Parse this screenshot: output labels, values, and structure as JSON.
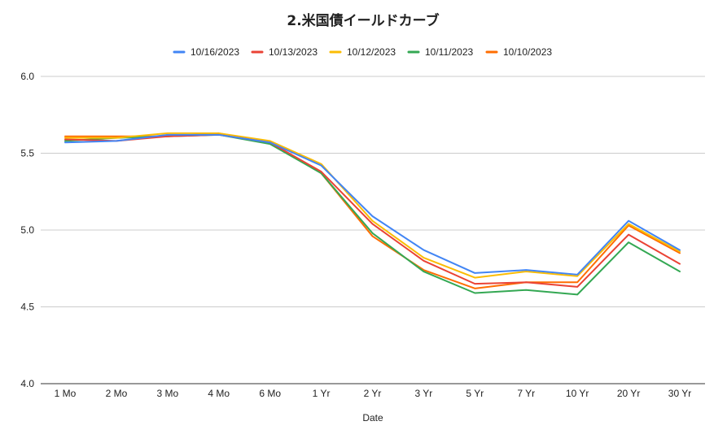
{
  "chart_data": {
    "type": "line",
    "title": "2.米国債イールドカーブ",
    "xlabel": "Date",
    "ylabel": "",
    "categories": [
      "1 Mo",
      "2 Mo",
      "3 Mo",
      "4 Mo",
      "6 Mo",
      "1 Yr",
      "2 Yr",
      "3 Yr",
      "5 Yr",
      "7 Yr",
      "10 Yr",
      "20 Yr",
      "30 Yr"
    ],
    "ylim": [
      4.0,
      6.0
    ],
    "yticks": [
      "4.0",
      "4.5",
      "5.0",
      "5.5",
      "6.0"
    ],
    "grid": true,
    "legend_position": "top",
    "series": [
      {
        "name": "10/16/2023",
        "color": "#4285f4",
        "values": [
          5.57,
          5.58,
          5.62,
          5.62,
          5.57,
          5.42,
          5.09,
          4.87,
          4.72,
          4.74,
          4.71,
          5.06,
          4.87
        ]
      },
      {
        "name": "10/13/2023",
        "color": "#ea4335",
        "values": [
          5.59,
          5.58,
          5.61,
          5.62,
          5.57,
          5.38,
          5.04,
          4.8,
          4.65,
          4.66,
          4.63,
          4.97,
          4.78
        ]
      },
      {
        "name": "10/12/2023",
        "color": "#fbbc04",
        "values": [
          5.6,
          5.6,
          5.63,
          5.63,
          5.58,
          5.43,
          5.06,
          4.82,
          4.69,
          4.73,
          4.7,
          5.04,
          4.86
        ]
      },
      {
        "name": "10/11/2023",
        "color": "#34a853",
        "values": [
          5.58,
          5.6,
          5.61,
          5.62,
          5.56,
          5.37,
          4.98,
          4.73,
          4.59,
          4.61,
          4.58,
          4.92,
          4.73
        ]
      },
      {
        "name": "10/10/2023",
        "color": "#ff6d01",
        "values": [
          5.61,
          5.61,
          5.61,
          5.63,
          5.57,
          5.37,
          4.96,
          4.74,
          4.62,
          4.66,
          4.66,
          5.03,
          4.85
        ]
      }
    ]
  }
}
